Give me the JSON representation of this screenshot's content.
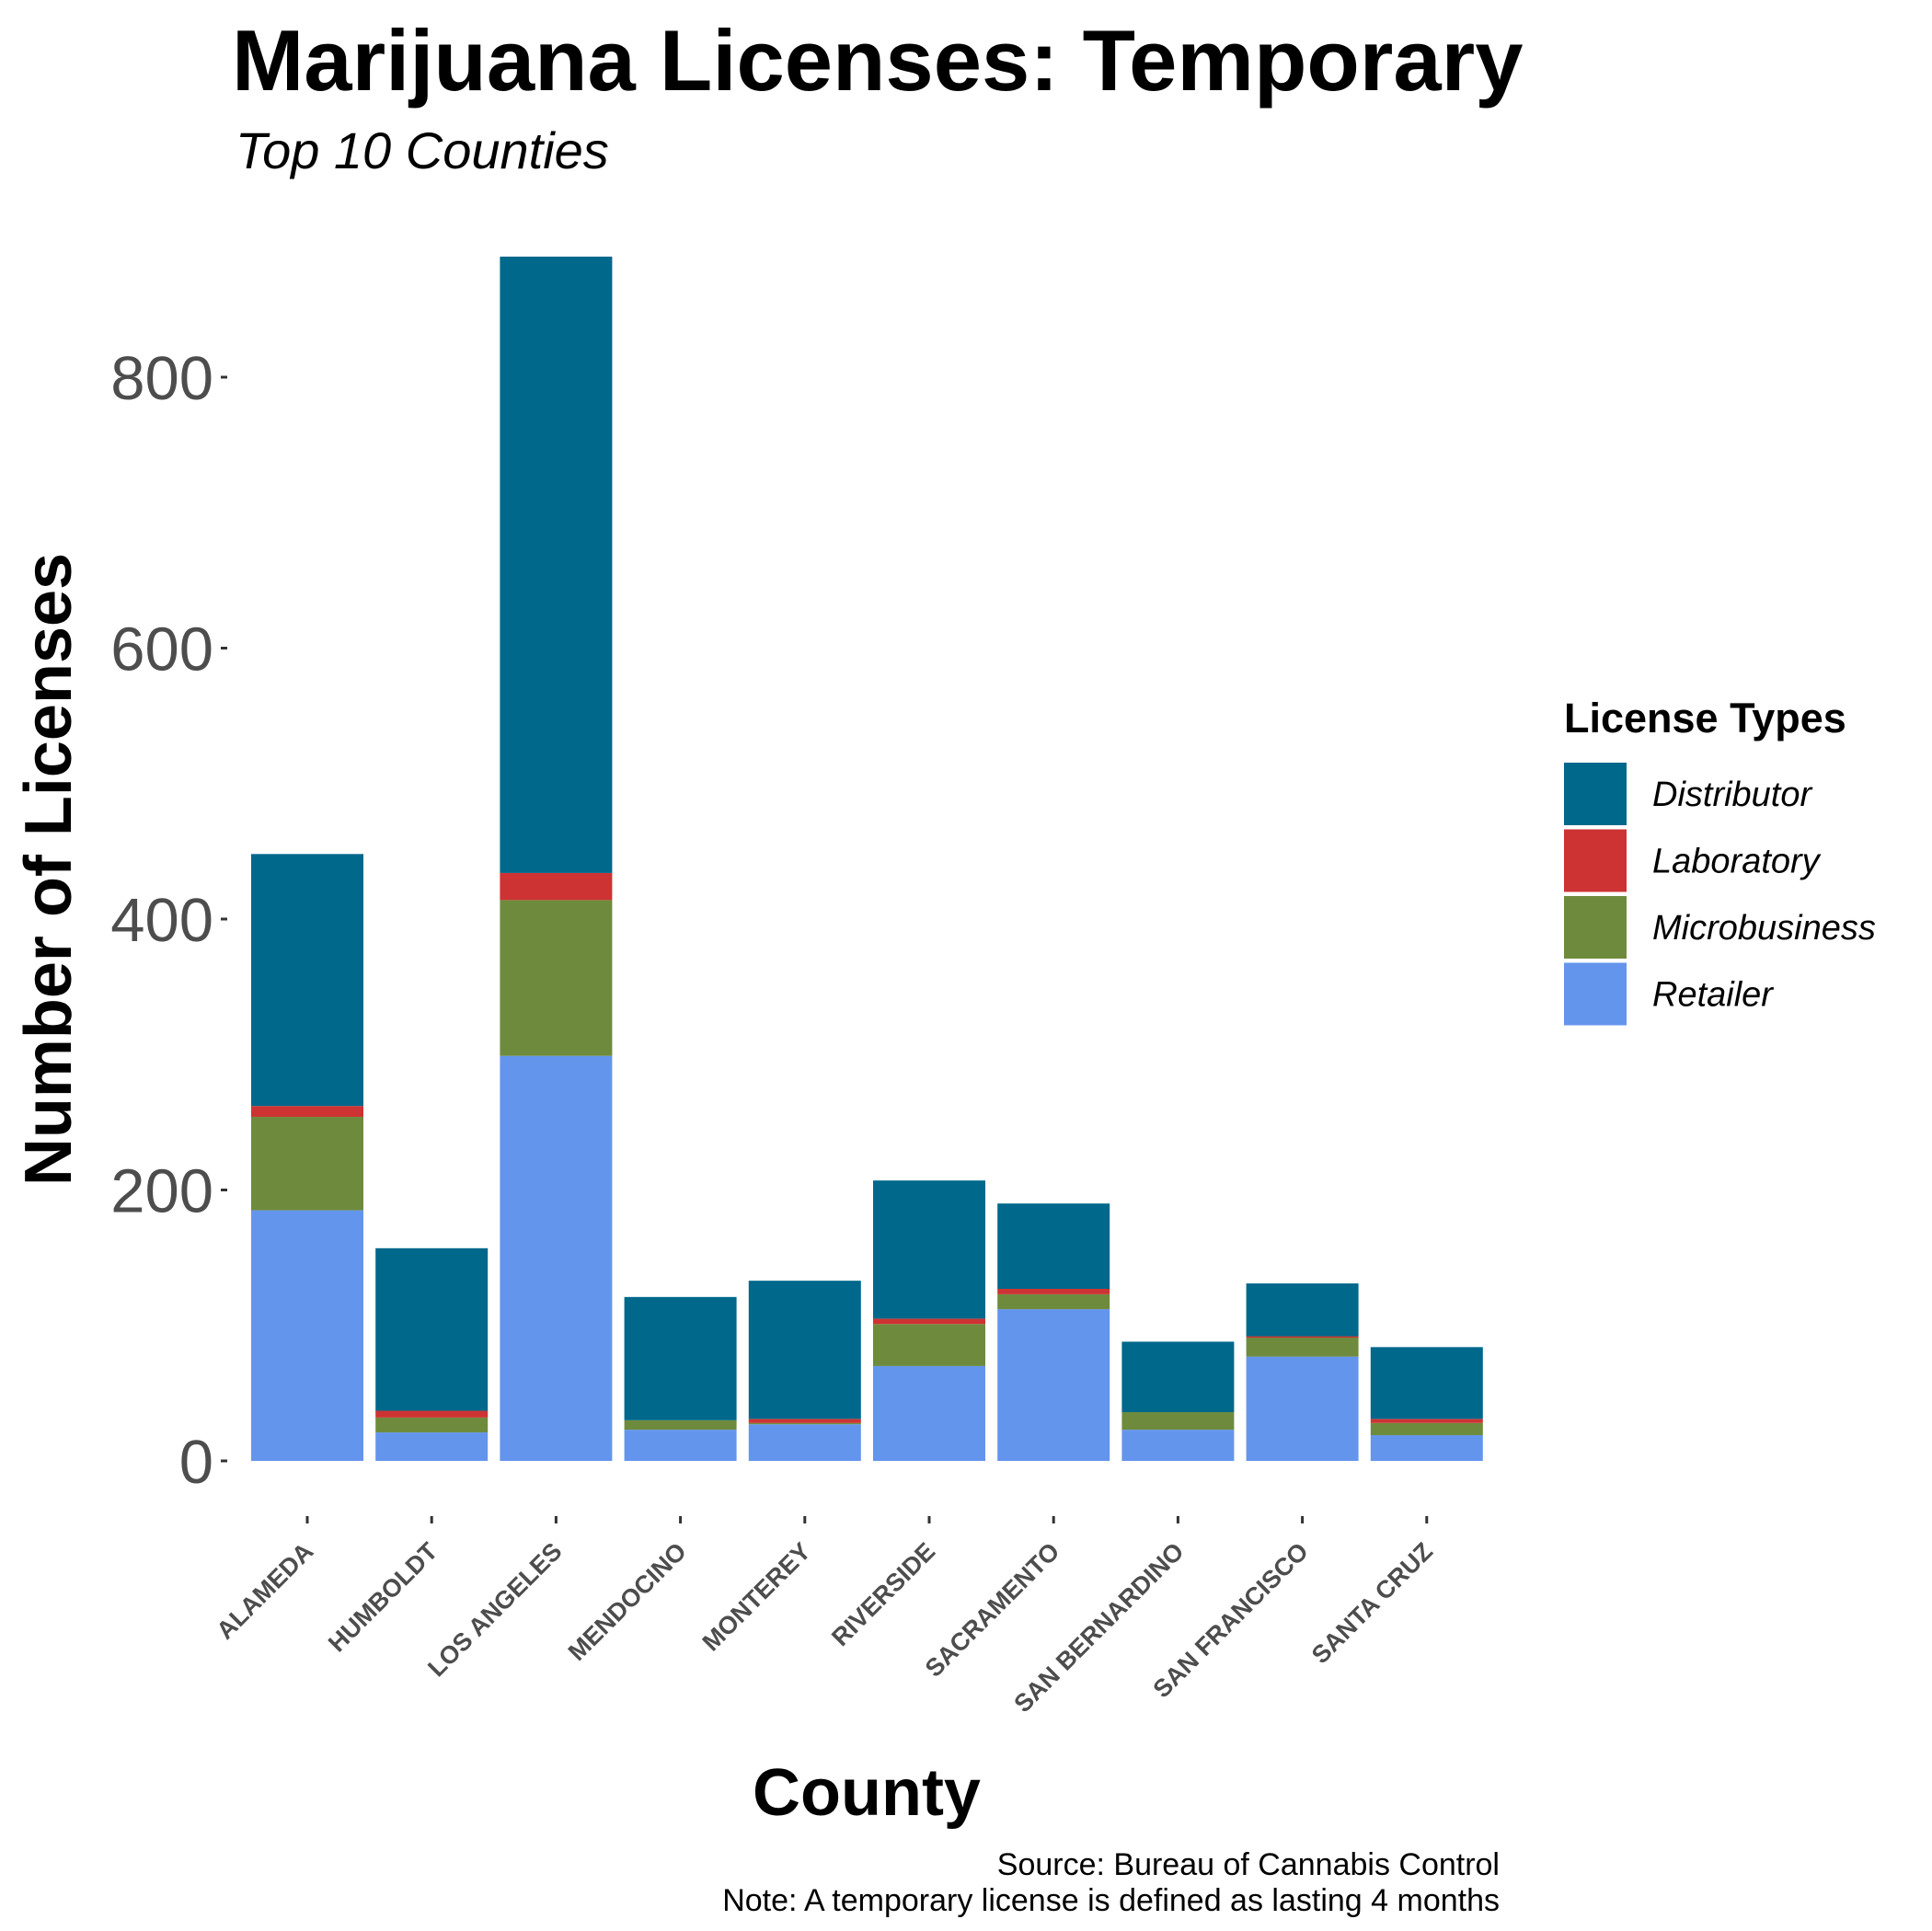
{
  "chart_data": {
    "type": "bar",
    "stacked": true,
    "title": "Marijuana Licenses: Temporary",
    "subtitle": "Top 10 Counties",
    "xlabel": "County",
    "ylabel": "Number of Licenses",
    "ylim": [
      0,
      890
    ],
    "yticks": [
      0,
      200,
      400,
      600,
      800
    ],
    "grid": false,
    "legend_title": "License Types",
    "legend_position": "right",
    "categories": [
      "ALAMEDA",
      "HUMBOLDT",
      "LOS ANGELES",
      "MENDOCINO",
      "MONTEREY",
      "RIVERSIDE",
      "SACRAMENTO",
      "SAN BERNARDINO",
      "SAN FRANCISCO",
      "SANTA CRUZ"
    ],
    "series": [
      {
        "name": "Retailer",
        "color": "#6495ED",
        "values": [
          185,
          21,
          299,
          23,
          27,
          70,
          112,
          23,
          77,
          19
        ]
      },
      {
        "name": "Microbusiness",
        "color": "#6E8B3D",
        "values": [
          69,
          11,
          115,
          7,
          1,
          31,
          11,
          13,
          14,
          9
        ]
      },
      {
        "name": "Laboratory",
        "color": "#CD3333",
        "values": [
          8,
          5,
          20,
          0,
          3,
          4,
          4,
          0,
          1,
          3
        ]
      },
      {
        "name": "Distributor",
        "color": "#00688B",
        "values": [
          186,
          120,
          455,
          91,
          102,
          102,
          63,
          52,
          39,
          53
        ]
      }
    ],
    "legend_order": [
      "Distributor",
      "Laboratory",
      "Microbusiness",
      "Retailer"
    ],
    "caption_lines": [
      "Source: Bureau of Cannabis Control",
      "Note: A temporary license is defined as lasting 4 months"
    ]
  }
}
